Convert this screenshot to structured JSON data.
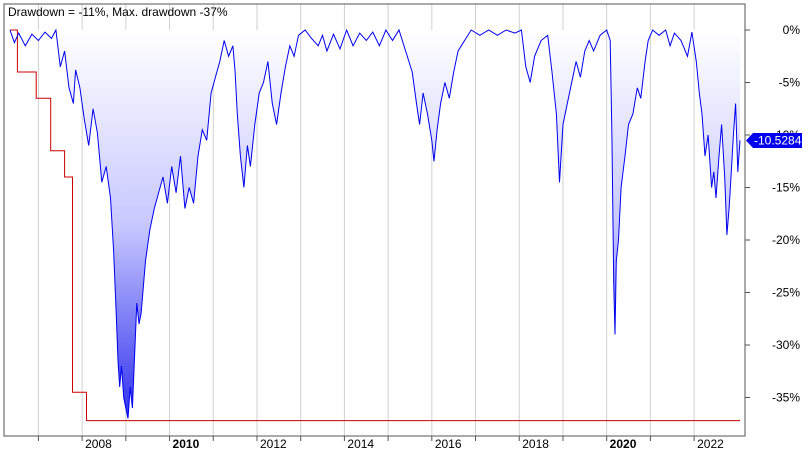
{
  "chart_data": {
    "type": "area",
    "title": "Drawdown = -11%, Max. drawdown -37%",
    "xlabel": "",
    "ylabel": "",
    "x_range": [
      2006.35,
      2023.05
    ],
    "ylim": [
      -38,
      0
    ],
    "y_ticks": [
      {
        "value": 0,
        "label": "0%"
      },
      {
        "value": -5,
        "label": "-5%"
      },
      {
        "value": -10,
        "label": "-10%"
      },
      {
        "value": -15,
        "label": "-15%"
      },
      {
        "value": -20,
        "label": "-20%"
      },
      {
        "value": -25,
        "label": "-25%"
      },
      {
        "value": -30,
        "label": "-30%"
      },
      {
        "value": -35,
        "label": "-35%"
      }
    ],
    "x_ticks": [
      {
        "value": 2007.0,
        "label": ""
      },
      {
        "value": 2008.0,
        "label": "2008",
        "bold": false
      },
      {
        "value": 2009.0,
        "label": ""
      },
      {
        "value": 2010.0,
        "label": "2010",
        "bold": true
      },
      {
        "value": 2011.0,
        "label": ""
      },
      {
        "value": 2012.0,
        "label": "2012",
        "bold": false
      },
      {
        "value": 2013.0,
        "label": ""
      },
      {
        "value": 2014.0,
        "label": "2014",
        "bold": false
      },
      {
        "value": 2015.0,
        "label": ""
      },
      {
        "value": 2016.0,
        "label": "2016",
        "bold": false
      },
      {
        "value": 2017.0,
        "label": ""
      },
      {
        "value": 2018.0,
        "label": "2018",
        "bold": false
      },
      {
        "value": 2019.0,
        "label": ""
      },
      {
        "value": 2020.0,
        "label": "2020",
        "bold": true
      },
      {
        "value": 2021.0,
        "label": ""
      },
      {
        "value": 2022.0,
        "label": "2022",
        "bold": false
      }
    ],
    "grid": true,
    "current_value": -10.5284,
    "current_value_label": "-10.5284",
    "series": [
      {
        "role": "drawdown",
        "color": "#0000ee",
        "points": [
          [
            2006.35,
            0
          ],
          [
            2006.45,
            -1.2
          ],
          [
            2006.55,
            -0.3
          ],
          [
            2006.7,
            -1.5
          ],
          [
            2006.85,
            -0.4
          ],
          [
            2007.0,
            -1.0
          ],
          [
            2007.15,
            -0.2
          ],
          [
            2007.3,
            -0.8
          ],
          [
            2007.4,
            0
          ],
          [
            2007.5,
            -3.5
          ],
          [
            2007.6,
            -2.0
          ],
          [
            2007.7,
            -5.5
          ],
          [
            2007.8,
            -7.0
          ],
          [
            2007.85,
            -3.8
          ],
          [
            2007.95,
            -5.5
          ],
          [
            2008.05,
            -8.5
          ],
          [
            2008.15,
            -11.0
          ],
          [
            2008.25,
            -7.5
          ],
          [
            2008.35,
            -9.8
          ],
          [
            2008.45,
            -14.5
          ],
          [
            2008.55,
            -13.0
          ],
          [
            2008.65,
            -16.0
          ],
          [
            2008.72,
            -21.0
          ],
          [
            2008.78,
            -27.0
          ],
          [
            2008.82,
            -31.5
          ],
          [
            2008.86,
            -34.0
          ],
          [
            2008.9,
            -32.0
          ],
          [
            2008.95,
            -35.0
          ],
          [
            2009.0,
            -36.0
          ],
          [
            2009.05,
            -37.0
          ],
          [
            2009.1,
            -34.0
          ],
          [
            2009.15,
            -36.0
          ],
          [
            2009.2,
            -31.0
          ],
          [
            2009.25,
            -26.0
          ],
          [
            2009.3,
            -28.0
          ],
          [
            2009.35,
            -27.0
          ],
          [
            2009.45,
            -22.0
          ],
          [
            2009.55,
            -19.0
          ],
          [
            2009.65,
            -17.0
          ],
          [
            2009.75,
            -15.5
          ],
          [
            2009.85,
            -14.0
          ],
          [
            2009.95,
            -16.5
          ],
          [
            2010.05,
            -13.0
          ],
          [
            2010.15,
            -15.5
          ],
          [
            2010.25,
            -12.0
          ],
          [
            2010.35,
            -17.0
          ],
          [
            2010.45,
            -15.0
          ],
          [
            2010.55,
            -16.5
          ],
          [
            2010.65,
            -12.0
          ],
          [
            2010.75,
            -9.5
          ],
          [
            2010.85,
            -10.5
          ],
          [
            2010.95,
            -6.0
          ],
          [
            2011.05,
            -4.5
          ],
          [
            2011.15,
            -3.0
          ],
          [
            2011.25,
            -1.0
          ],
          [
            2011.35,
            -2.5
          ],
          [
            2011.45,
            -1.5
          ],
          [
            2011.5,
            -4.0
          ],
          [
            2011.55,
            -8.0
          ],
          [
            2011.62,
            -12.0
          ],
          [
            2011.7,
            -15.0
          ],
          [
            2011.78,
            -11.0
          ],
          [
            2011.85,
            -13.0
          ],
          [
            2011.95,
            -9.0
          ],
          [
            2012.05,
            -6.0
          ],
          [
            2012.15,
            -5.0
          ],
          [
            2012.25,
            -3.0
          ],
          [
            2012.35,
            -7.0
          ],
          [
            2012.45,
            -9.0
          ],
          [
            2012.55,
            -6.0
          ],
          [
            2012.65,
            -3.5
          ],
          [
            2012.75,
            -1.5
          ],
          [
            2012.85,
            -2.5
          ],
          [
            2012.95,
            -0.5
          ],
          [
            2013.1,
            0
          ],
          [
            2013.25,
            -0.8
          ],
          [
            2013.4,
            -1.5
          ],
          [
            2013.5,
            -0.5
          ],
          [
            2013.6,
            -2.0
          ],
          [
            2013.75,
            -0.4
          ],
          [
            2013.9,
            -1.8
          ],
          [
            2014.05,
            0
          ],
          [
            2014.2,
            -1.5
          ],
          [
            2014.35,
            -0.3
          ],
          [
            2014.5,
            -1.0
          ],
          [
            2014.65,
            -0.2
          ],
          [
            2014.8,
            -1.5
          ],
          [
            2014.95,
            0
          ],
          [
            2015.1,
            -1.0
          ],
          [
            2015.25,
            0
          ],
          [
            2015.4,
            -2.0
          ],
          [
            2015.55,
            -4.0
          ],
          [
            2015.65,
            -7.0
          ],
          [
            2015.72,
            -9.0
          ],
          [
            2015.8,
            -6.0
          ],
          [
            2015.9,
            -8.0
          ],
          [
            2016.0,
            -10.5
          ],
          [
            2016.05,
            -12.5
          ],
          [
            2016.12,
            -9.5
          ],
          [
            2016.2,
            -7.0
          ],
          [
            2016.3,
            -5.0
          ],
          [
            2016.4,
            -6.5
          ],
          [
            2016.5,
            -4.0
          ],
          [
            2016.6,
            -2.0
          ],
          [
            2016.75,
            -1.0
          ],
          [
            2016.9,
            0
          ],
          [
            2017.1,
            -0.5
          ],
          [
            2017.3,
            0
          ],
          [
            2017.5,
            -0.5
          ],
          [
            2017.7,
            0
          ],
          [
            2017.9,
            -0.3
          ],
          [
            2018.05,
            0
          ],
          [
            2018.15,
            -3.5
          ],
          [
            2018.25,
            -5.0
          ],
          [
            2018.35,
            -2.5
          ],
          [
            2018.5,
            -1.0
          ],
          [
            2018.65,
            -0.5
          ],
          [
            2018.75,
            -4.0
          ],
          [
            2018.85,
            -8.0
          ],
          [
            2018.92,
            -14.5
          ],
          [
            2019.0,
            -9.0
          ],
          [
            2019.1,
            -7.0
          ],
          [
            2019.2,
            -5.0
          ],
          [
            2019.3,
            -3.0
          ],
          [
            2019.4,
            -4.5
          ],
          [
            2019.5,
            -2.0
          ],
          [
            2019.6,
            -1.0
          ],
          [
            2019.7,
            -2.0
          ],
          [
            2019.85,
            -0.5
          ],
          [
            2020.0,
            0
          ],
          [
            2020.08,
            -1.0
          ],
          [
            2020.12,
            -10.0
          ],
          [
            2020.16,
            -24.0
          ],
          [
            2020.19,
            -29.0
          ],
          [
            2020.22,
            -22.0
          ],
          [
            2020.27,
            -20.0
          ],
          [
            2020.33,
            -15.0
          ],
          [
            2020.42,
            -12.0
          ],
          [
            2020.5,
            -9.0
          ],
          [
            2020.6,
            -8.0
          ],
          [
            2020.7,
            -5.5
          ],
          [
            2020.78,
            -6.5
          ],
          [
            2020.88,
            -3.0
          ],
          [
            2020.95,
            -1.0
          ],
          [
            2021.05,
            0
          ],
          [
            2021.2,
            -0.5
          ],
          [
            2021.35,
            0
          ],
          [
            2021.45,
            -1.5
          ],
          [
            2021.55,
            -0.3
          ],
          [
            2021.7,
            -1.0
          ],
          [
            2021.85,
            -2.5
          ],
          [
            2021.95,
            -0.2
          ],
          [
            2022.05,
            -3.0
          ],
          [
            2022.12,
            -6.0
          ],
          [
            2022.18,
            -8.0
          ],
          [
            2022.25,
            -12.0
          ],
          [
            2022.32,
            -10.0
          ],
          [
            2022.4,
            -15.0
          ],
          [
            2022.45,
            -13.5
          ],
          [
            2022.5,
            -16.0
          ],
          [
            2022.57,
            -12.0
          ],
          [
            2022.63,
            -9.0
          ],
          [
            2022.7,
            -14.0
          ],
          [
            2022.75,
            -19.5
          ],
          [
            2022.8,
            -17.0
          ],
          [
            2022.85,
            -13.5
          ],
          [
            2022.9,
            -10.0
          ],
          [
            2022.95,
            -7.0
          ],
          [
            2023.0,
            -13.5
          ],
          [
            2023.05,
            -10.5
          ]
        ]
      },
      {
        "role": "max-drawdown",
        "color": "#cc0000",
        "points": [
          [
            2006.35,
            0
          ],
          [
            2006.52,
            0
          ],
          [
            2006.52,
            -4.0
          ],
          [
            2006.95,
            -4.0
          ],
          [
            2006.95,
            -6.5
          ],
          [
            2007.28,
            -6.5
          ],
          [
            2007.28,
            -11.5
          ],
          [
            2007.6,
            -11.5
          ],
          [
            2007.6,
            -14.0
          ],
          [
            2007.78,
            -14.0
          ],
          [
            2007.78,
            -34.5
          ],
          [
            2008.1,
            -34.5
          ],
          [
            2008.1,
            -37.2
          ],
          [
            2023.05,
            -37.2
          ]
        ]
      }
    ]
  }
}
